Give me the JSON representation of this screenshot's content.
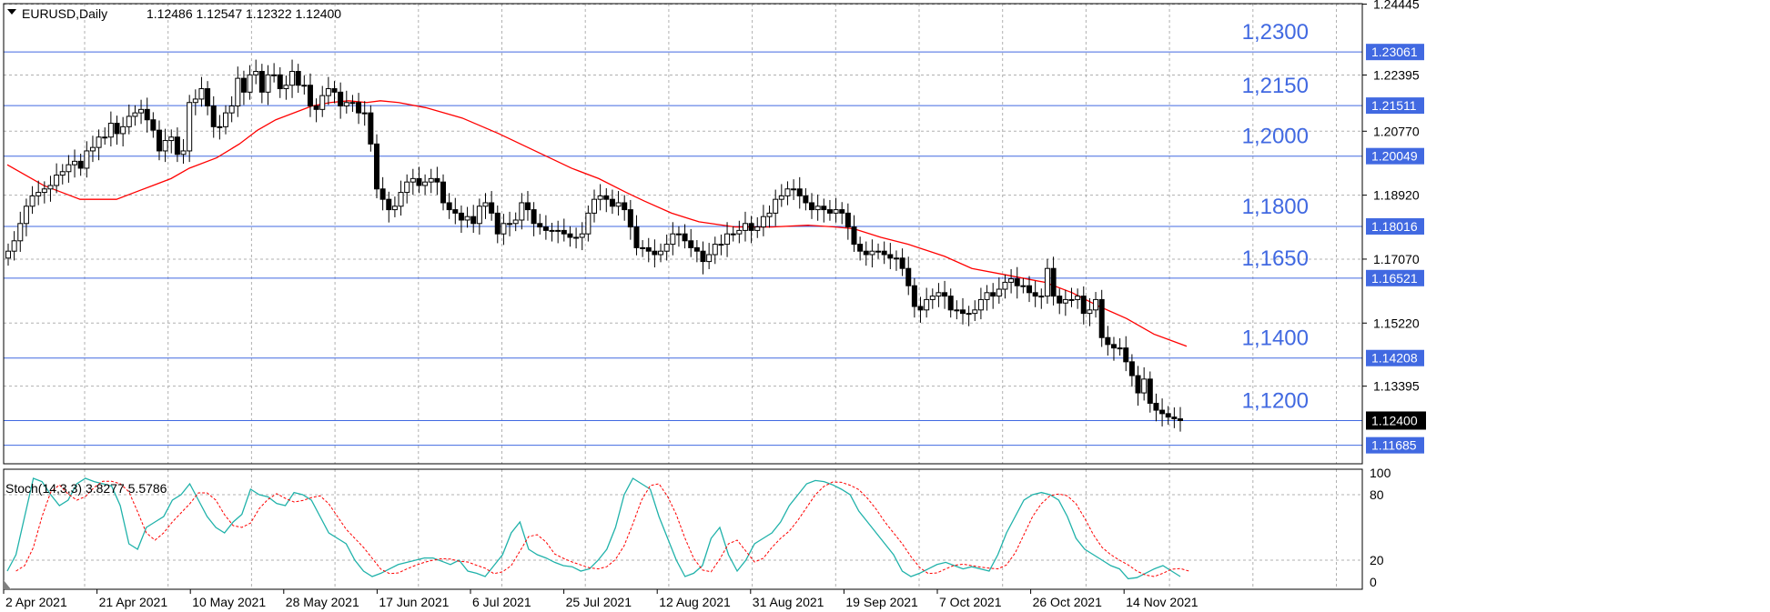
{
  "chart_data": [
    {
      "type": "candlestick",
      "title": "EURUSD,Daily",
      "ohlc_readout": "1.12486 1.12547 1.12322 1.12400",
      "ylim": [
        1.1115,
        1.2446
      ],
      "y_ticks": [
        "1.24445",
        "1.22395",
        "1.20770",
        "1.18920",
        "1.17070",
        "1.15220",
        "1.13395"
      ],
      "current_price_label": "1.12400",
      "current_price": 1.124,
      "x_labels": [
        "2 Apr 2021",
        "21 Apr 2021",
        "10 May 2021",
        "28 May 2021",
        "17 Jun 2021",
        "6 Jul 2021",
        "25 Jul 2021",
        "12 Aug 2021",
        "31 Aug 2021",
        "19 Sep 2021",
        "7 Oct 2021",
        "26 Oct 2021",
        "14 Nov 2021"
      ],
      "levels": [
        {
          "value": 1.23061,
          "axis_label": "1.23061",
          "chart_label": "1,2300"
        },
        {
          "value": 1.21511,
          "axis_label": "1.21511",
          "chart_label": "1,2150"
        },
        {
          "value": 1.20049,
          "axis_label": "1.20049",
          "chart_label": "1,2000"
        },
        {
          "value": 1.18016,
          "axis_label": "1.18016",
          "chart_label": "1,1800"
        },
        {
          "value": 1.16521,
          "axis_label": "1.16521",
          "chart_label": "1,1650"
        },
        {
          "value": 1.14208,
          "axis_label": "1.14208",
          "chart_label": "1,1400"
        },
        {
          "value": 1.124,
          "axis_label": "",
          "chart_label": "1,1200"
        },
        {
          "value": 1.11685,
          "axis_label": "1.11685",
          "chart_label": ""
        }
      ],
      "close_series": [
        1.173,
        1.176,
        1.181,
        1.186,
        1.189,
        1.19,
        1.191,
        1.192,
        1.195,
        1.196,
        1.198,
        1.199,
        1.197,
        1.202,
        1.203,
        1.206,
        1.206,
        1.21,
        1.207,
        1.209,
        1.212,
        1.213,
        1.214,
        1.211,
        1.208,
        1.202,
        1.205,
        1.206,
        1.201,
        1.202,
        1.216,
        1.217,
        1.22,
        1.215,
        1.209,
        1.209,
        1.213,
        1.215,
        1.223,
        1.219,
        1.224,
        1.225,
        1.219,
        1.224,
        1.224,
        1.22,
        1.221,
        1.225,
        1.221,
        1.221,
        1.215,
        1.214,
        1.218,
        1.22,
        1.219,
        1.215,
        1.216,
        1.216,
        1.213,
        1.213,
        1.204,
        1.191,
        1.188,
        1.185,
        1.186,
        1.19,
        1.193,
        1.194,
        1.192,
        1.193,
        1.194,
        1.193,
        1.187,
        1.185,
        1.184,
        1.182,
        1.183,
        1.181,
        1.186,
        1.187,
        1.184,
        1.178,
        1.181,
        1.181,
        1.182,
        1.187,
        1.185,
        1.181,
        1.18,
        1.179,
        1.179,
        1.179,
        1.178,
        1.177,
        1.177,
        1.178,
        1.184,
        1.188,
        1.189,
        1.188,
        1.186,
        1.187,
        1.185,
        1.18,
        1.174,
        1.174,
        1.173,
        1.172,
        1.173,
        1.175,
        1.178,
        1.178,
        1.176,
        1.174,
        1.173,
        1.17,
        1.172,
        1.175,
        1.175,
        1.178,
        1.178,
        1.179,
        1.181,
        1.179,
        1.18,
        1.183,
        1.184,
        1.188,
        1.189,
        1.191,
        1.191,
        1.189,
        1.187,
        1.185,
        1.186,
        1.185,
        1.184,
        1.185,
        1.184,
        1.18,
        1.175,
        1.173,
        1.172,
        1.173,
        1.173,
        1.172,
        1.171,
        1.171,
        1.168,
        1.163,
        1.157,
        1.156,
        1.159,
        1.16,
        1.161,
        1.16,
        1.156,
        1.156,
        1.155,
        1.155,
        1.156,
        1.159,
        1.161,
        1.16,
        1.162,
        1.164,
        1.165,
        1.163,
        1.163,
        1.161,
        1.16,
        1.16,
        1.168,
        1.16,
        1.158,
        1.159,
        1.159,
        1.16,
        1.155,
        1.156,
        1.159,
        1.148,
        1.146,
        1.145,
        1.145,
        1.141,
        1.137,
        1.132,
        1.136,
        1.129,
        1.127,
        1.126,
        1.125,
        1.1245,
        1.124
      ],
      "moving_average": [
        [
          0,
          1.198
        ],
        [
          20,
          1.195
        ],
        [
          40,
          1.192
        ],
        [
          60,
          1.19
        ],
        [
          80,
          1.188
        ],
        [
          100,
          1.188
        ],
        [
          120,
          1.188
        ],
        [
          140,
          1.19
        ],
        [
          160,
          1.192
        ],
        [
          180,
          1.194
        ],
        [
          200,
          1.197
        ],
        [
          230,
          1.2
        ],
        [
          255,
          1.204
        ],
        [
          275,
          1.208
        ],
        [
          295,
          1.211
        ],
        [
          315,
          1.213
        ],
        [
          335,
          1.215
        ],
        [
          355,
          1.216
        ],
        [
          375,
          1.2165
        ],
        [
          395,
          1.216
        ],
        [
          410,
          1.2165
        ],
        [
          430,
          1.216
        ],
        [
          460,
          1.2145
        ],
        [
          500,
          1.2115
        ],
        [
          540,
          1.207
        ],
        [
          580,
          1.202
        ],
        [
          620,
          1.197
        ],
        [
          650,
          1.194
        ],
        [
          680,
          1.19
        ],
        [
          700,
          1.1875
        ],
        [
          730,
          1.184
        ],
        [
          760,
          1.1815
        ],
        [
          800,
          1.18
        ],
        [
          840,
          1.18
        ],
        [
          880,
          1.1805
        ],
        [
          910,
          1.18
        ],
        [
          930,
          1.1795
        ],
        [
          960,
          1.177
        ],
        [
          990,
          1.175
        ],
        [
          1030,
          1.1715
        ],
        [
          1060,
          1.168
        ],
        [
          1100,
          1.166
        ],
        [
          1140,
          1.164
        ],
        [
          1170,
          1.161
        ],
        [
          1200,
          1.157
        ],
        [
          1230,
          1.1535
        ],
        [
          1260,
          1.149
        ],
        [
          1296,
          1.1455
        ]
      ],
      "moving_average_color": "#ff0000",
      "candle_color": "#000000",
      "level_color": "#4169e1"
    },
    {
      "type": "line",
      "label": "Stoch(14,3,3) 3.8277 5.5786",
      "ylim": [
        0,
        100
      ],
      "y_ticks": [
        "100",
        "80",
        "20",
        "0"
      ],
      "main_color": "#20b2aa",
      "signal_color": "#ff0000",
      "main": [
        10,
        25,
        60,
        95,
        92,
        80,
        70,
        75,
        90,
        95,
        92,
        90,
        88,
        70,
        35,
        30,
        50,
        55,
        60,
        75,
        80,
        90,
        75,
        60,
        50,
        45,
        55,
        62,
        85,
        80,
        78,
        72,
        70,
        82,
        80,
        75,
        60,
        45,
        40,
        35,
        20,
        10,
        5,
        8,
        12,
        16,
        18,
        20,
        22,
        22,
        19,
        16,
        20,
        10,
        8,
        5,
        15,
        25,
        45,
        55,
        30,
        25,
        22,
        18,
        15,
        14,
        10,
        12,
        20,
        30,
        50,
        80,
        95,
        90,
        85,
        60,
        40,
        20,
        5,
        8,
        15,
        40,
        50,
        25,
        10,
        20,
        35,
        40,
        45,
        55,
        70,
        80,
        90,
        93,
        92,
        89,
        85,
        80,
        65,
        55,
        45,
        35,
        25,
        10,
        5,
        8,
        12,
        16,
        18,
        15,
        12,
        14,
        12,
        10,
        25,
        45,
        60,
        75,
        80,
        82,
        80,
        75,
        60,
        40,
        30,
        25,
        20,
        15,
        12,
        3,
        4,
        8,
        12,
        15,
        10,
        5
      ]
    }
  ]
}
